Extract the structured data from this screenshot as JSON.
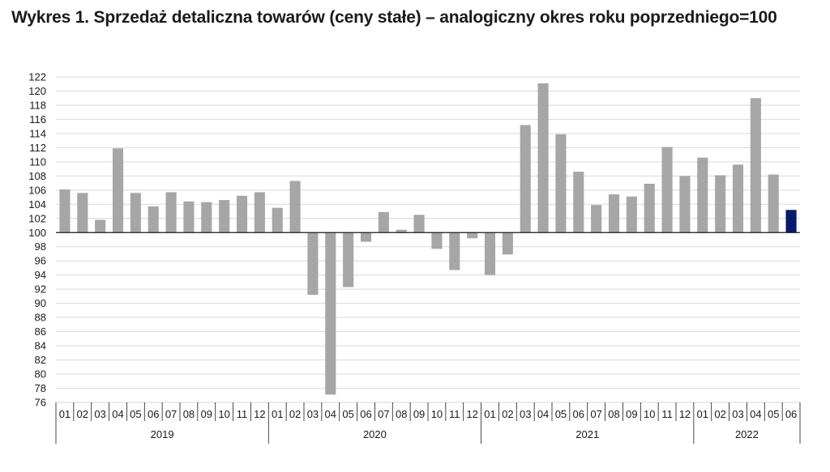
{
  "title": "Wykres 1. Sprzedaż detaliczna towarów (ceny stałe) – analogiczny okres roku poprzedniego=100",
  "colors": {
    "bar": "#a6a6a6",
    "highlight": "#0a1a6b",
    "grid": "#d9d9d9",
    "axis": "#1a1a1a"
  },
  "chart_data": {
    "type": "bar",
    "title": "Wykres 1. Sprzedaż detaliczna towarów (ceny stałe) – analogiczny okres roku poprzedniego=100",
    "baseline": 100,
    "ylim": [
      76,
      122
    ],
    "ytick_step": 2,
    "yticks": [
      "76",
      "78",
      "80",
      "82",
      "84",
      "86",
      "88",
      "90",
      "92",
      "94",
      "96",
      "98",
      "100",
      "102",
      "104",
      "106",
      "108",
      "110",
      "112",
      "114",
      "116",
      "118",
      "120",
      "122"
    ],
    "grid": true,
    "categories": [
      "01",
      "02",
      "03",
      "04",
      "05",
      "06",
      "07",
      "08",
      "09",
      "10",
      "11",
      "12",
      "01",
      "02",
      "03",
      "04",
      "05",
      "06",
      "07",
      "08",
      "09",
      "10",
      "11",
      "12",
      "01",
      "02",
      "03",
      "04",
      "05",
      "06",
      "07",
      "08",
      "09",
      "10",
      "11",
      "12",
      "01",
      "02",
      "03",
      "04",
      "05",
      "06"
    ],
    "years": [
      {
        "label": "2019",
        "count": 12
      },
      {
        "label": "2020",
        "count": 12
      },
      {
        "label": "2021",
        "count": 12
      },
      {
        "label": "2022",
        "count": 6
      }
    ],
    "values": [
      106.1,
      105.6,
      101.8,
      111.9,
      105.6,
      103.7,
      105.7,
      104.4,
      104.3,
      104.6,
      105.2,
      105.7,
      103.5,
      107.3,
      91.2,
      77.1,
      92.3,
      98.7,
      102.9,
      100.4,
      102.5,
      97.7,
      94.7,
      99.2,
      94.0,
      96.9,
      115.2,
      121.1,
      113.9,
      108.6,
      103.9,
      105.4,
      105.1,
      106.9,
      112.1,
      108.0,
      110.6,
      108.1,
      109.6,
      119.0,
      108.2,
      103.2
    ],
    "highlight_index": 41
  }
}
